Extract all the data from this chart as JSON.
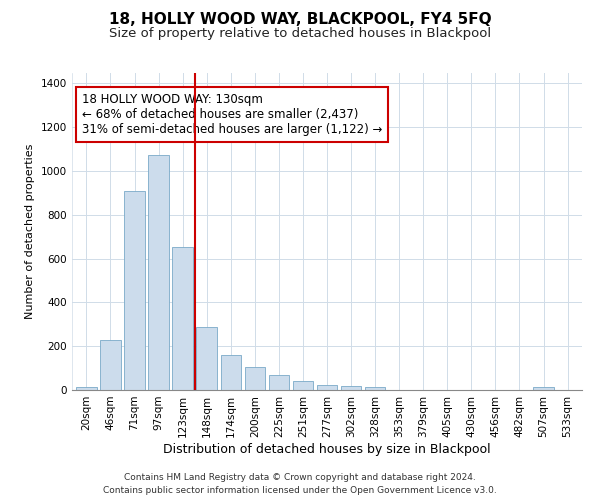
{
  "title": "18, HOLLY WOOD WAY, BLACKPOOL, FY4 5FQ",
  "subtitle": "Size of property relative to detached houses in Blackpool",
  "xlabel": "Distribution of detached houses by size in Blackpool",
  "ylabel": "Number of detached properties",
  "categories": [
    "20sqm",
    "46sqm",
    "71sqm",
    "97sqm",
    "123sqm",
    "148sqm",
    "174sqm",
    "200sqm",
    "225sqm",
    "251sqm",
    "277sqm",
    "302sqm",
    "328sqm",
    "353sqm",
    "379sqm",
    "405sqm",
    "430sqm",
    "456sqm",
    "482sqm",
    "507sqm",
    "533sqm"
  ],
  "values": [
    15,
    228,
    910,
    1075,
    655,
    290,
    158,
    107,
    68,
    40,
    22,
    20,
    15,
    0,
    0,
    0,
    0,
    0,
    0,
    12,
    0
  ],
  "bar_color": "#ccdcec",
  "bar_edge_color": "#7aaac8",
  "vline_color": "#cc0000",
  "annotation_text": "18 HOLLY WOOD WAY: 130sqm\n← 68% of detached houses are smaller (2,437)\n31% of semi-detached houses are larger (1,122) →",
  "annotation_box_facecolor": "#ffffff",
  "annotation_box_edgecolor": "#cc0000",
  "ylim": [
    0,
    1450
  ],
  "yticks": [
    0,
    200,
    400,
    600,
    800,
    1000,
    1200,
    1400
  ],
  "footer_line1": "Contains HM Land Registry data © Crown copyright and database right 2024.",
  "footer_line2": "Contains public sector information licensed under the Open Government Licence v3.0.",
  "title_fontsize": 11,
  "subtitle_fontsize": 9.5,
  "xlabel_fontsize": 9,
  "ylabel_fontsize": 8,
  "tick_fontsize": 7.5,
  "annotation_fontsize": 8.5,
  "footer_fontsize": 6.5,
  "grid_color": "#d0dce8"
}
